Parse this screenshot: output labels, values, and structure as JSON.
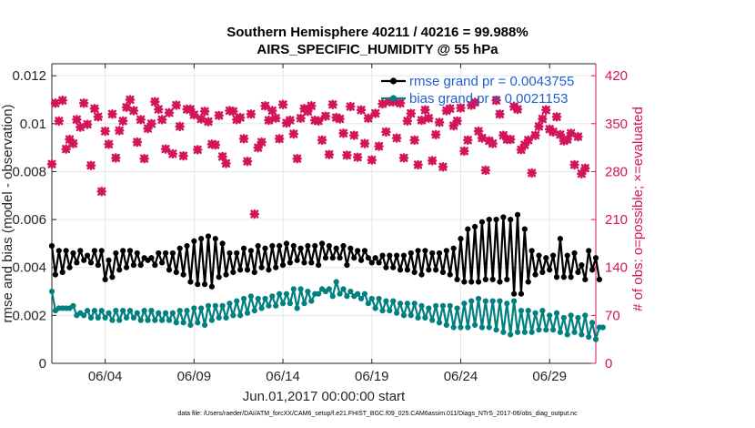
{
  "chart_data": {
    "type": "line",
    "title": "Southern Hemisphere 40211 / 40216 = 99.988%",
    "subtitle": "AIRS_SPECIFIC_HUMIDITY @ 55 hPa",
    "xlabel": "Jun.01,2017 00:00:00 start",
    "ylabel_left": "rmse and bias (model - observation)",
    "ylabel_right": "# of obs: o=possible; ×=evaluated",
    "x_ticks": [
      "06/04",
      "06/09",
      "06/14",
      "06/19",
      "06/24",
      "06/29"
    ],
    "y_left_ticks": [
      "0",
      "0.002",
      "0.004",
      "0.006",
      "0.008",
      "0.01",
      "0.012"
    ],
    "y_right_ticks": [
      "0",
      "70",
      "140",
      "210",
      "280",
      "350",
      "420"
    ],
    "ylim_left": [
      0,
      0.0125
    ],
    "ylim_right": [
      0,
      437.5
    ],
    "xlim_days": [
      0,
      30.6
    ],
    "legend": [
      {
        "name": "rmse grand pr = 0.0043755",
        "color": "#000000"
      },
      {
        "name": "bias grand pr = 0.0021153",
        "color": "#008080"
      }
    ],
    "series": [
      {
        "name": "rmse",
        "color": "#000000",
        "values": [
          0.0049,
          0.0037,
          0.0047,
          0.0038,
          0.0047,
          0.004,
          0.0046,
          0.0042,
          0.0047,
          0.0043,
          0.0045,
          0.0042,
          0.0047,
          0.0041,
          0.0047,
          0.0035,
          0.0043,
          0.0036,
          0.0046,
          0.0039,
          0.0047,
          0.004,
          0.0047,
          0.0041,
          0.0046,
          0.0041,
          0.0044,
          0.0043,
          0.0044,
          0.0041,
          0.0046,
          0.0042,
          0.0046,
          0.0039,
          0.0046,
          0.0038,
          0.0048,
          0.0037,
          0.0049,
          0.0034,
          0.0051,
          0.0033,
          0.0052,
          0.0033,
          0.0053,
          0.0032,
          0.0052,
          0.0036,
          0.005,
          0.0037,
          0.0046,
          0.0038,
          0.0046,
          0.0039,
          0.0048,
          0.0039,
          0.0047,
          0.0038,
          0.0049,
          0.004,
          0.0048,
          0.0039,
          0.0049,
          0.004,
          0.0049,
          0.0041,
          0.005,
          0.0042,
          0.0049,
          0.0043,
          0.0048,
          0.0042,
          0.0049,
          0.0042,
          0.0049,
          0.0041,
          0.005,
          0.0044,
          0.0049,
          0.0044,
          0.0048,
          0.0044,
          0.0049,
          0.0041,
          0.0048,
          0.0044,
          0.0047,
          0.0043,
          0.0047,
          0.0044,
          0.0042,
          0.0044,
          0.0042,
          0.0045,
          0.004,
          0.0045,
          0.004,
          0.0045,
          0.0039,
          0.0045,
          0.0039,
          0.0046,
          0.0038,
          0.0047,
          0.0037,
          0.0047,
          0.0039,
          0.0046,
          0.0039,
          0.0046,
          0.0038,
          0.0047,
          0.0037,
          0.0048,
          0.0035,
          0.0052,
          0.0034,
          0.0056,
          0.0034,
          0.0057,
          0.0034,
          0.0059,
          0.0035,
          0.006,
          0.0035,
          0.006,
          0.0034,
          0.0061,
          0.0035,
          0.006,
          0.0029,
          0.0062,
          0.0029,
          0.0056,
          0.0034,
          0.0047,
          0.0037,
          0.0045,
          0.0038,
          0.0044,
          0.0039,
          0.0045,
          0.0036,
          0.0052,
          0.0036,
          0.0045,
          0.0036,
          0.0046,
          0.0038,
          0.0041,
          0.0035,
          0.0047,
          0.0039,
          0.0044,
          0.0035
        ]
      },
      {
        "name": "bias",
        "color": "#008080",
        "values": [
          0.003,
          0.0022,
          0.0023,
          0.0023,
          0.0023,
          0.0023,
          0.0024,
          0.002,
          0.0021,
          0.002,
          0.0022,
          0.0019,
          0.0022,
          0.0019,
          0.0022,
          0.0019,
          0.0021,
          0.0018,
          0.0022,
          0.0018,
          0.0022,
          0.0019,
          0.0022,
          0.0019,
          0.0021,
          0.0018,
          0.0022,
          0.0018,
          0.0022,
          0.0018,
          0.0021,
          0.0018,
          0.0021,
          0.0018,
          0.0021,
          0.0017,
          0.0022,
          0.0017,
          0.0022,
          0.0016,
          0.0023,
          0.0017,
          0.0023,
          0.0016,
          0.0024,
          0.0018,
          0.0024,
          0.0019,
          0.0024,
          0.0019,
          0.0025,
          0.002,
          0.0026,
          0.002,
          0.0027,
          0.0021,
          0.0028,
          0.0022,
          0.0027,
          0.0023,
          0.0027,
          0.0024,
          0.0028,
          0.0024,
          0.0029,
          0.0025,
          0.0029,
          0.0025,
          0.0031,
          0.0023,
          0.0031,
          0.0025,
          0.003,
          0.0026,
          0.0029,
          0.0029,
          0.0031,
          0.003,
          0.0031,
          0.0028,
          0.0034,
          0.0029,
          0.0031,
          0.0028,
          0.003,
          0.0028,
          0.0029,
          0.0027,
          0.0029,
          0.0025,
          0.0027,
          0.0023,
          0.0027,
          0.0022,
          0.0026,
          0.0022,
          0.0026,
          0.0021,
          0.0025,
          0.002,
          0.0025,
          0.002,
          0.0025,
          0.0019,
          0.0024,
          0.0019,
          0.0023,
          0.0018,
          0.0024,
          0.0017,
          0.0024,
          0.0016,
          0.0024,
          0.0015,
          0.0023,
          0.0015,
          0.0025,
          0.0015,
          0.0026,
          0.0016,
          0.0027,
          0.0015,
          0.0026,
          0.0015,
          0.0026,
          0.0014,
          0.0026,
          0.0013,
          0.0025,
          0.0012,
          0.0026,
          0.0013,
          0.0022,
          0.0013,
          0.0022,
          0.0013,
          0.0021,
          0.0014,
          0.0022,
          0.0014,
          0.002,
          0.0014,
          0.0021,
          0.0013,
          0.0019,
          0.0012,
          0.002,
          0.0013,
          0.0019,
          0.0012,
          0.002,
          0.0011,
          0.0017,
          0.001,
          0.0015,
          0.0015
        ]
      },
      {
        "name": "evaluated obs",
        "color": "#d4145a",
        "values": [
          291,
          380,
          354,
          384,
          313,
          327,
          321,
          356,
          345,
          380,
          349,
          289,
          372,
          360,
          251,
          339,
          320,
          364,
          300,
          340,
          354,
          374,
          385,
          369,
          323,
          356,
          299,
          343,
          350,
          382,
          371,
          356,
          313,
          366,
          306,
          377,
          346,
          303,
          371,
          371,
          363,
          312,
          357,
          368,
          353,
          320,
          319,
          362,
          302,
          292,
          369,
          368,
          356,
          359,
          328,
          295,
          364,
          218,
          315,
          323,
          376,
          355,
          369,
          358,
          328,
          378,
          351,
          355,
          335,
          299,
          358,
          372,
          368,
          376,
          355,
          354,
          326,
          361,
          305,
          378,
          359,
          357,
          336,
          304,
          375,
          333,
          301,
          370,
          321,
          358,
          297,
          365,
          317,
          379,
          338,
          382,
          382,
          329,
          380,
          300,
          354,
          365,
          326,
          290,
          355,
          370,
          358,
          296,
          334,
          352,
          287,
          369,
          372,
          347,
          354,
          373,
          310,
          326,
          377,
          381,
          339,
          329,
          282,
          325,
          321,
          384,
          364,
          333,
          327,
          327,
          375,
          371,
          312,
          319,
          326,
          278,
          333,
          346,
          357,
          370,
          342,
          338,
          360,
          334,
          325,
          327,
          336,
          290,
          331,
          277,
          285
        ]
      }
    ]
  },
  "footnote": "data file: /Users/raeder/DAI/ATM_forcXX/CAM6_setup/f.e21.FHIST_BGC.f09_025.CAM6assim.011/Diags_NTrS_2017-06/obs_diag_output.nc"
}
